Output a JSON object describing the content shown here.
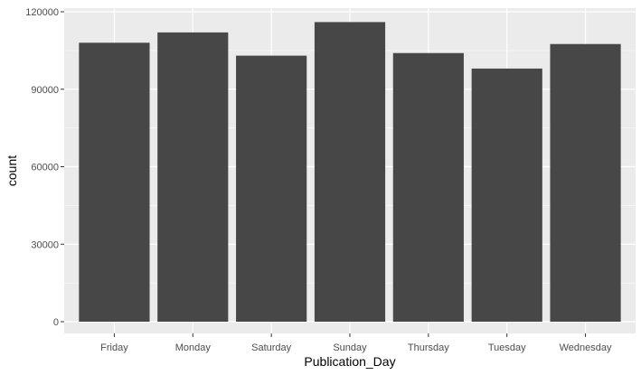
{
  "chart_data": {
    "type": "bar",
    "title": "",
    "xlabel": "Publication_Day",
    "ylabel": "count",
    "categories": [
      "Friday",
      "Monday",
      "Saturday",
      "Sunday",
      "Thursday",
      "Tuesday",
      "Wednesday"
    ],
    "values": [
      108000,
      112000,
      103000,
      116000,
      104000,
      98000,
      107500
    ],
    "ylim": [
      0,
      120000
    ],
    "yticks": [
      0,
      30000,
      60000,
      90000,
      120000
    ],
    "ytick_labels": [
      "0",
      "30000",
      "60000",
      "90000",
      "120000"
    ],
    "grid": true,
    "bar_color": "#474747",
    "panel_background": "#ebebeb",
    "grid_color": "#ffffff"
  }
}
